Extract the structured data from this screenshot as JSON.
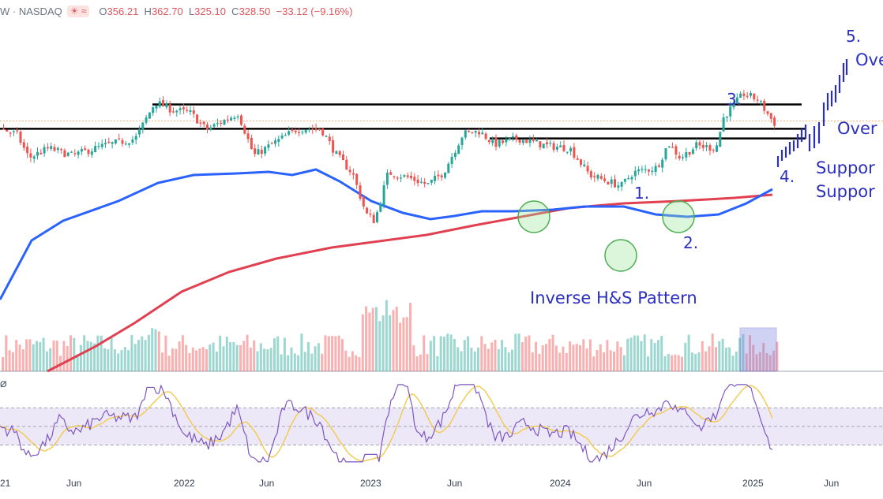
{
  "header": {
    "ticker_fragment": "W · NASDAQ",
    "badge_icons": [
      "sun-cloud-icon",
      "wave-icon"
    ],
    "badge_text": "☀ ≈",
    "open_label": "O",
    "open": "356.21",
    "high_label": "H",
    "high": "362.70",
    "low_label": "L",
    "low": "325.10",
    "close_label": "C",
    "close": "328.50",
    "change": "−33.12 (−9.16%)"
  },
  "annotations": {
    "pattern": "Inverse H&S Pattern",
    "n1": "1.",
    "n2": "2.",
    "n3": "3.",
    "n4": "4.",
    "n5": "5.",
    "over1": "Ove",
    "over2": "Over",
    "support1": "Suppor",
    "support2": "Suppor"
  },
  "rsi_label": "Ø",
  "colors": {
    "up": "#26a69a",
    "down": "#ef5350",
    "ma50": "#2962ff",
    "ma200": "#e04050",
    "annotation": "#2b2fbf",
    "rsi": "#7e57c2",
    "rsi_ma": "#f2c94c",
    "highlight": "#7b7fe0"
  },
  "chart_data": {
    "type": "candlestick",
    "x_tick_labels": [
      "21",
      "Jun",
      "2022",
      "Jun",
      "2023",
      "Jun",
      "2024",
      "Jun",
      "2025",
      "Jun"
    ],
    "price_range": [
      160,
      760
    ],
    "levels": [
      {
        "name": "upper_resistance",
        "value": 610
      },
      {
        "name": "support_1",
        "value": 560
      },
      {
        "name": "support_2",
        "value": 540
      }
    ],
    "rsi": {
      "range": [
        0,
        100
      ],
      "upper_band": 70,
      "lower_band": 30,
      "mid": 50
    }
  }
}
